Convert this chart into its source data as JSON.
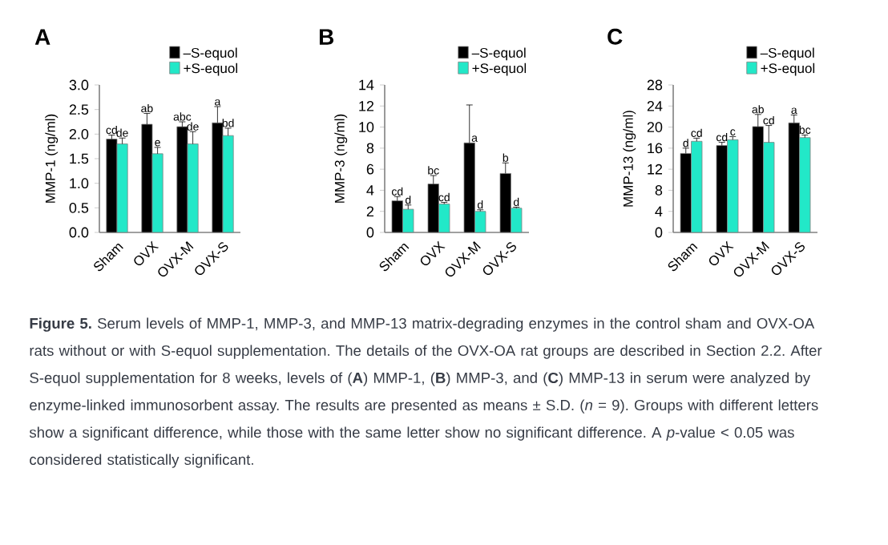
{
  "chart_data": [
    {
      "type": "bar",
      "title": "A",
      "ylabel": "MMP-1 (ng/ml)",
      "categories": [
        "Sham",
        "OVX",
        "OVX-M",
        "OVX-S"
      ],
      "ylim": [
        0,
        3
      ],
      "yticks": [
        {
          "value": 0,
          "label": "0.0"
        },
        {
          "value": 0.5,
          "label": "0.5"
        },
        {
          "value": 1,
          "label": "1.0"
        },
        {
          "value": 1.5,
          "label": "1.5"
        },
        {
          "value": 2,
          "label": "2.0"
        },
        {
          "value": 2.5,
          "label": "2.5"
        },
        {
          "value": 3,
          "label": "3.0"
        }
      ],
      "legend": "top right",
      "series": [
        {
          "name": "–S-equol",
          "color": "#000000",
          "values": [
            1.9,
            2.2,
            2.15,
            2.23
          ],
          "errors": [
            0.08,
            0.22,
            0.1,
            0.33
          ],
          "value_labels": [
            "cd",
            "ab",
            "abc",
            "a"
          ]
        },
        {
          "name": "+S-equol",
          "color": "#22e8c8",
          "values": [
            1.8,
            1.6,
            1.8,
            1.97
          ],
          "errors": [
            0.12,
            0.13,
            0.25,
            0.15
          ],
          "value_labels": [
            "de",
            "e",
            "de",
            "bd"
          ]
        }
      ]
    },
    {
      "type": "bar",
      "title": "B",
      "ylabel": "MMP-3 (ng/ml)",
      "categories": [
        "Sham",
        "OVX",
        "OVX-M",
        "OVX-S"
      ],
      "ylim": [
        0,
        14
      ],
      "yticks": [
        0,
        2,
        4,
        6,
        8,
        10,
        12,
        14
      ],
      "legend": "top right",
      "series": [
        {
          "name": "–S-equol",
          "color": "#000000",
          "values": [
            3.0,
            4.6,
            8.5,
            5.6
          ],
          "errors": [
            0.4,
            0.8,
            3.6,
            1.0
          ],
          "value_labels": [
            "cd",
            "bc",
            "a",
            "b"
          ]
        },
        {
          "name": "+S-equol",
          "color": "#22e8c8",
          "values": [
            2.2,
            2.7,
            2.0,
            2.3
          ],
          "errors": [
            0.4,
            0.15,
            0.15,
            0.1
          ],
          "value_labels": [
            "d",
            "cd",
            "d",
            "d"
          ]
        }
      ]
    },
    {
      "type": "bar",
      "title": "C",
      "ylabel": "MMP-13 (ng/ml)",
      "categories": [
        "Sham",
        "OVX",
        "OVX-M",
        "OVX-S"
      ],
      "ylim": [
        0,
        28
      ],
      "yticks": [
        0,
        4,
        8,
        12,
        16,
        20,
        24,
        28
      ],
      "legend": "top right",
      "series": [
        {
          "name": "–S-equol",
          "color": "#000000",
          "values": [
            15.0,
            16.5,
            20.1,
            20.8
          ],
          "errors": [
            1.0,
            0.6,
            2.3,
            1.5
          ],
          "value_labels": [
            "d",
            "cd",
            "ab",
            "a"
          ]
        },
        {
          "name": "+S-equol",
          "color": "#22e8c8",
          "values": [
            17.3,
            17.6,
            17.1,
            18.0
          ],
          "errors": [
            0.6,
            0.6,
            3.2,
            0.5
          ],
          "value_labels": [
            "cd",
            "c",
            "cd",
            "bc"
          ]
        }
      ]
    },
    {
      "type": "other",
      "annotations": [
        "**Figure 5.** Serum levels of MMP-1, MMP-3, and MMP-13 matrix-degrading enzymes in the control sham and OVX-OA rats without or with S-equol supplementation. The details of the OVX-OA rat groups are described in Section 2.2. After S-equol supplementation for 8 weeks, levels of (**A**) MMP-1, (**B**) MMP-3, and (**C**) MMP-13 in serum were analyzed by enzyme-linked immunosorbent assay. The results are presented as means ± S.D. (*n* = 9). Groups with different letters show a significant difference, while those with the same letter show no significant difference. A *p*-value < 0.05 was considered statistically significant."
      ]
    }
  ]
}
